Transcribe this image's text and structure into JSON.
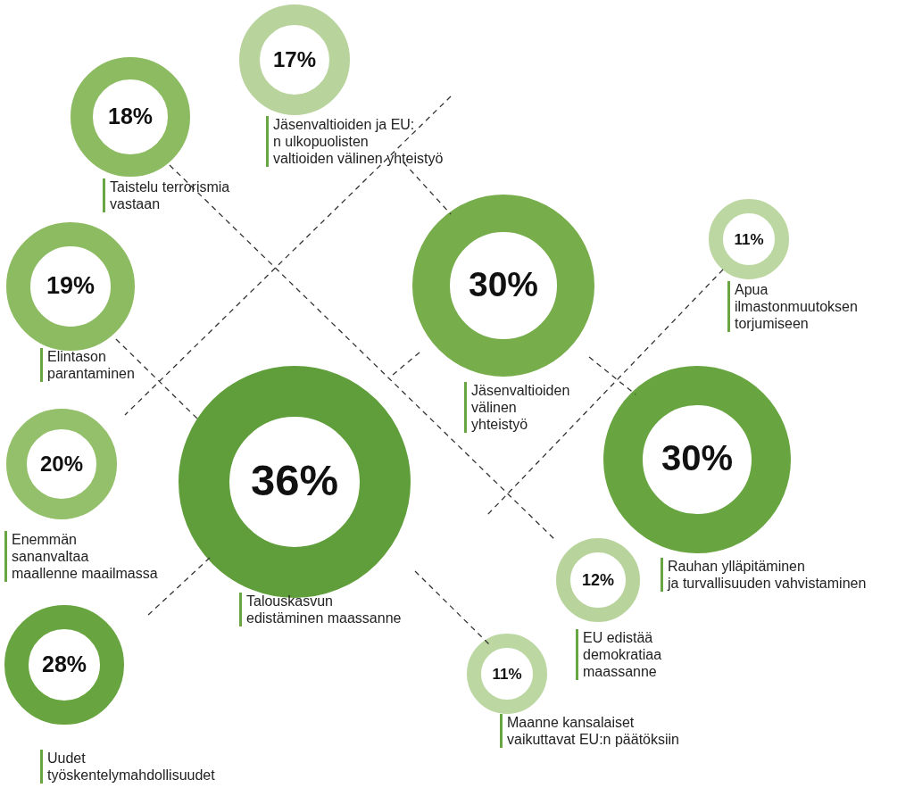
{
  "chart_data": {
    "type": "other",
    "categories": [
      "Jäsenvaltioiden ja EU:\nn ulkopuolisten\nvaltioiden välinen yhteistyö",
      "Taistelu terrorismia\nvastaan",
      "Jäsenvaltioiden\nvälinen\nyhteistyö",
      "Apua\nilmastonmuutoksen\ntorjumiseen",
      "Elintason\nparantaminen",
      "Enemmän\nsananvaltaa\nmaallenne maailmassa",
      "Talouskasvun\nedistäminen maassanne",
      "Rauhan ylläpitäminen\nja turvallisuuden vahvistaminen",
      "EU edistää\ndemokratiaa\nmaassanne",
      "Uudet\ntyöskentelymahdollisuudet",
      "Maanne kansalaiset\nvaikuttavat EU:n päätöksiin"
    ],
    "values": [
      17,
      18,
      30,
      11,
      19,
      20,
      36,
      30,
      12,
      28,
      11
    ],
    "value_labels": [
      "17%",
      "18%",
      "30%",
      "11%",
      "19%",
      "20%",
      "36%",
      "30%",
      "12%",
      "28%",
      "11%"
    ],
    "colors": [
      "#b9d39c",
      "#8dbb62",
      "#78ad4c",
      "#bdd7a2",
      "#8dbb62",
      "#94c06c",
      "#5f9e3a",
      "#68a541",
      "#b9d39c",
      "#68a541",
      "#bdd7a2"
    ]
  }
}
